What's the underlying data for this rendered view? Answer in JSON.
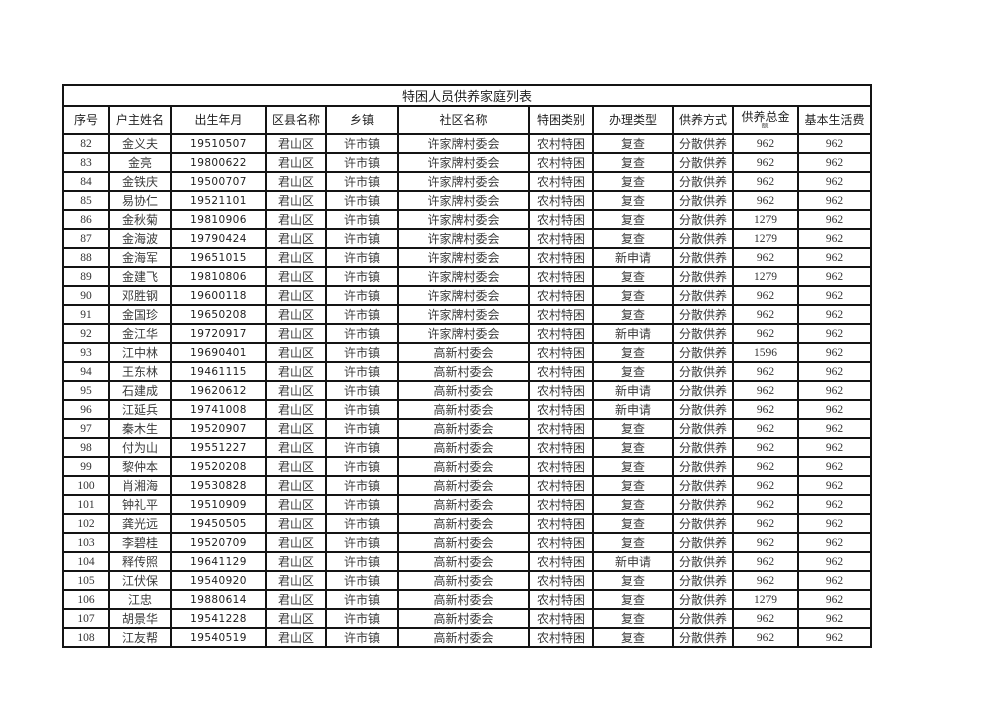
{
  "table": {
    "title": "特困人员供养家庭列表",
    "headers": [
      "序号",
      "户主姓名",
      "出生年月",
      "区县名称",
      "乡镇",
      "社区名称",
      "特困类别",
      "办理类型",
      "供养方式",
      "供养总金",
      "基本生活费"
    ],
    "total_header_sub": "额",
    "rows": [
      [
        "82",
        "金义夫",
        "19510507",
        "君山区",
        "许市镇",
        "许家牌村委会",
        "农村特困",
        "复查",
        "分散供养",
        "962",
        "962"
      ],
      [
        "83",
        "金亮",
        "19800622",
        "君山区",
        "许市镇",
        "许家牌村委会",
        "农村特困",
        "复查",
        "分散供养",
        "962",
        "962"
      ],
      [
        "84",
        "金铁庆",
        "19500707",
        "君山区",
        "许市镇",
        "许家牌村委会",
        "农村特困",
        "复查",
        "分散供养",
        "962",
        "962"
      ],
      [
        "85",
        "易协仁",
        "19521101",
        "君山区",
        "许市镇",
        "许家牌村委会",
        "农村特困",
        "复查",
        "分散供养",
        "962",
        "962"
      ],
      [
        "86",
        "金秋菊",
        "19810906",
        "君山区",
        "许市镇",
        "许家牌村委会",
        "农村特困",
        "复查",
        "分散供养",
        "1279",
        "962"
      ],
      [
        "87",
        "金海波",
        "19790424",
        "君山区",
        "许市镇",
        "许家牌村委会",
        "农村特困",
        "复查",
        "分散供养",
        "1279",
        "962"
      ],
      [
        "88",
        "金海军",
        "19651015",
        "君山区",
        "许市镇",
        "许家牌村委会",
        "农村特困",
        "新申请",
        "分散供养",
        "962",
        "962"
      ],
      [
        "89",
        "金建飞",
        "19810806",
        "君山区",
        "许市镇",
        "许家牌村委会",
        "农村特困",
        "复查",
        "分散供养",
        "1279",
        "962"
      ],
      [
        "90",
        "邓胜钢",
        "19600118",
        "君山区",
        "许市镇",
        "许家牌村委会",
        "农村特困",
        "复查",
        "分散供养",
        "962",
        "962"
      ],
      [
        "91",
        "金国珍",
        "19650208",
        "君山区",
        "许市镇",
        "许家牌村委会",
        "农村特困",
        "复查",
        "分散供养",
        "962",
        "962"
      ],
      [
        "92",
        "金江华",
        "19720917",
        "君山区",
        "许市镇",
        "许家牌村委会",
        "农村特困",
        "新申请",
        "分散供养",
        "962",
        "962"
      ],
      [
        "93",
        "江中林",
        "19690401",
        "君山区",
        "许市镇",
        "高新村委会",
        "农村特困",
        "复查",
        "分散供养",
        "1596",
        "962"
      ],
      [
        "94",
        "王东林",
        "19461115",
        "君山区",
        "许市镇",
        "高新村委会",
        "农村特困",
        "复查",
        "分散供养",
        "962",
        "962"
      ],
      [
        "95",
        "石建成",
        "19620612",
        "君山区",
        "许市镇",
        "高新村委会",
        "农村特困",
        "新申请",
        "分散供养",
        "962",
        "962"
      ],
      [
        "96",
        "江延兵",
        "19741008",
        "君山区",
        "许市镇",
        "高新村委会",
        "农村特困",
        "新申请",
        "分散供养",
        "962",
        "962"
      ],
      [
        "97",
        "秦木生",
        "19520907",
        "君山区",
        "许市镇",
        "高新村委会",
        "农村特困",
        "复查",
        "分散供养",
        "962",
        "962"
      ],
      [
        "98",
        "付为山",
        "19551227",
        "君山区",
        "许市镇",
        "高新村委会",
        "农村特困",
        "复查",
        "分散供养",
        "962",
        "962"
      ],
      [
        "99",
        "黎仲本",
        "19520208",
        "君山区",
        "许市镇",
        "高新村委会",
        "农村特困",
        "复查",
        "分散供养",
        "962",
        "962"
      ],
      [
        "100",
        "肖湘海",
        "19530828",
        "君山区",
        "许市镇",
        "高新村委会",
        "农村特困",
        "复查",
        "分散供养",
        "962",
        "962"
      ],
      [
        "101",
        "钟礼平",
        "19510909",
        "君山区",
        "许市镇",
        "高新村委会",
        "农村特困",
        "复查",
        "分散供养",
        "962",
        "962"
      ],
      [
        "102",
        "龚光远",
        "19450505",
        "君山区",
        "许市镇",
        "高新村委会",
        "农村特困",
        "复查",
        "分散供养",
        "962",
        "962"
      ],
      [
        "103",
        "李碧桂",
        "19520709",
        "君山区",
        "许市镇",
        "高新村委会",
        "农村特困",
        "复查",
        "分散供养",
        "962",
        "962"
      ],
      [
        "104",
        "释传照",
        "19641129",
        "君山区",
        "许市镇",
        "高新村委会",
        "农村特困",
        "新申请",
        "分散供养",
        "962",
        "962"
      ],
      [
        "105",
        "江伏保",
        "19540920",
        "君山区",
        "许市镇",
        "高新村委会",
        "农村特困",
        "复查",
        "分散供养",
        "962",
        "962"
      ],
      [
        "106",
        "江忠",
        "19880614",
        "君山区",
        "许市镇",
        "高新村委会",
        "农村特困",
        "复查",
        "分散供养",
        "1279",
        "962"
      ],
      [
        "107",
        "胡景华",
        "19541228",
        "君山区",
        "许市镇",
        "高新村委会",
        "农村特困",
        "复查",
        "分散供养",
        "962",
        "962"
      ],
      [
        "108",
        "江友帮",
        "19540519",
        "君山区",
        "许市镇",
        "高新村委会",
        "农村特困",
        "复查",
        "分散供养",
        "962",
        "962"
      ]
    ]
  }
}
